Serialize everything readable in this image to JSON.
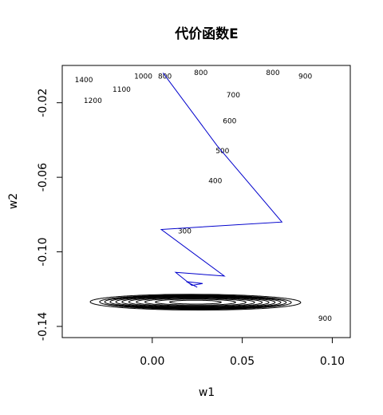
{
  "chart_data": {
    "type": "contour",
    "title": "代价函数E",
    "xlabel": "w1",
    "ylabel": "w2",
    "xlim": [
      -0.05,
      0.11
    ],
    "ylim": [
      -0.146,
      0.0
    ],
    "x_ticks": [
      0.0,
      0.05,
      0.1
    ],
    "x_tick_labels": [
      "0.00",
      "0.05",
      "0.10"
    ],
    "y_ticks": [
      -0.14,
      -0.1,
      -0.06,
      -0.02
    ],
    "y_tick_labels": [
      "-0.14",
      "-0.10",
      "-0.06",
      "-0.02"
    ],
    "grid": false,
    "contour_line_color": "#000000",
    "contour_levels": [
      300,
      400,
      500,
      600,
      700,
      800,
      900,
      1000,
      1100,
      1200,
      1400
    ],
    "contour_labels": [
      {
        "text": "1400",
        "x": -0.038,
        "y": -0.008
      },
      {
        "text": "1200",
        "x": -0.033,
        "y": -0.019
      },
      {
        "text": "1100",
        "x": -0.017,
        "y": -0.013
      },
      {
        "text": "1000",
        "x": -0.005,
        "y": -0.006
      },
      {
        "text": "800",
        "x": 0.007,
        "y": -0.006
      },
      {
        "text": "800",
        "x": 0.027,
        "y": -0.004
      },
      {
        "text": "800",
        "x": 0.067,
        "y": -0.004
      },
      {
        "text": "900",
        "x": 0.085,
        "y": -0.006
      },
      {
        "text": "700",
        "x": 0.045,
        "y": -0.016
      },
      {
        "text": "600",
        "x": 0.043,
        "y": -0.03
      },
      {
        "text": "500",
        "x": 0.039,
        "y": -0.046
      },
      {
        "text": "400",
        "x": 0.035,
        "y": -0.062
      },
      {
        "text": "300",
        "x": 0.018,
        "y": -0.089
      },
      {
        "text": "900",
        "x": 0.096,
        "y": -0.136
      }
    ],
    "series": [
      {
        "type": "line",
        "color": "#0000cc",
        "x": [
          0.006,
          0.036,
          0.072,
          0.005,
          0.04,
          0.013,
          0.022,
          0.028,
          0.019,
          0.025,
          0.021
        ],
        "y": [
          -0.004,
          -0.043,
          -0.084,
          -0.088,
          -0.113,
          -0.111,
          -0.118,
          -0.117,
          -0.116,
          -0.119,
          -0.117
        ]
      }
    ]
  }
}
